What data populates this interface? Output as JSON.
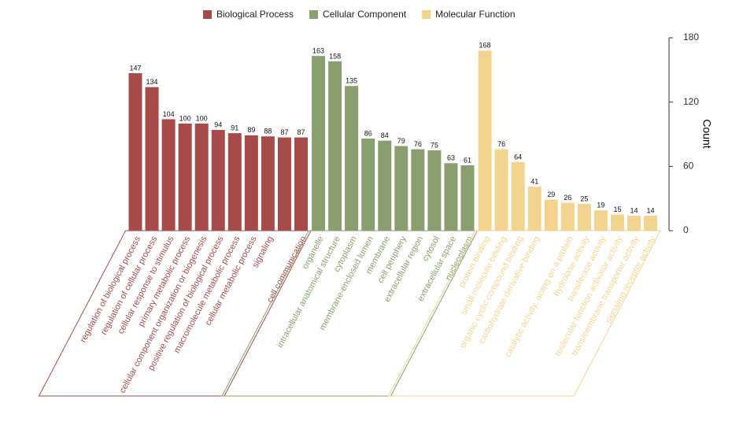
{
  "chart_data": {
    "type": "bar",
    "ylabel": "Count",
    "ylim": [
      0,
      180
    ],
    "yticks": [
      0,
      60,
      120,
      180
    ],
    "yaxis_side": "right",
    "grid": false,
    "series": [
      {
        "name": "Biological Process",
        "color": "#a64a4a",
        "categories": [
          "regulation of biological process",
          "regulation of cellular process",
          "cellular response to stimulus",
          "primary metabolic process",
          "cellular component organization or biogenesis",
          "positive regulation of biological process",
          "macromolecule metabolic process",
          "cellular metabolic process",
          "signaling",
          null,
          "cell communication"
        ],
        "values": [
          147,
          134,
          104,
          100,
          100,
          94,
          91,
          89,
          88,
          87,
          87
        ]
      },
      {
        "name": "Cellular Component",
        "color": "#8a9f6f",
        "categories": [
          "organelle",
          "intracellular anatomical structure",
          "cytoplasm",
          "membrane-enclosed lumen",
          "membrane",
          "cell periphery",
          "extracellular region",
          "cytosol",
          "extracellular space",
          "nucleoplasm"
        ],
        "values": [
          163,
          158,
          135,
          86,
          84,
          79,
          76,
          75,
          63,
          61
        ]
      },
      {
        "name": "Molecular Function",
        "color": "#f3d48f",
        "categories": [
          "protein binding",
          "small molecule binding",
          "organic cyclic compound binding",
          "carbohydrate derivative binding",
          null,
          "catalytic activity, acting on a protein",
          "hydrolase activity",
          "transferase activity",
          "molecular function activator activity",
          "transmembrane transporter activity",
          "signaling receptor activity"
        ],
        "values": [
          168,
          76,
          64,
          41,
          29,
          26,
          25,
          19,
          15,
          14,
          14
        ]
      }
    ]
  }
}
